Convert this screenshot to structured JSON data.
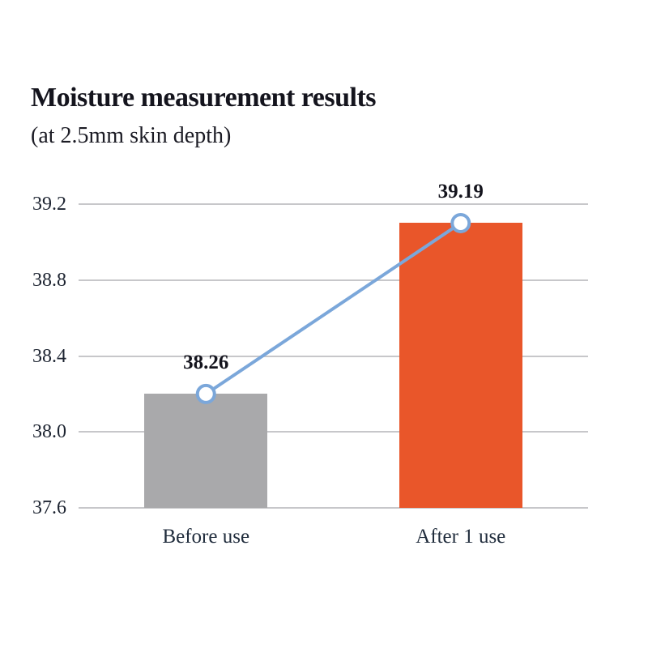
{
  "header": {
    "title": "Moisture measurement results",
    "subtitle": "(at 2.5mm skin depth)"
  },
  "chart_data": {
    "type": "bar",
    "title": "Moisture measurement results",
    "subtitle": "(at 2.5mm skin depth)",
    "categories": [
      "Before use",
      "After 1 use"
    ],
    "values": [
      38.26,
      39.19
    ],
    "data_labels": [
      "38.26",
      "39.19"
    ],
    "bar_colors": [
      "#a9a9ab",
      "#e9562a"
    ],
    "ylim": [
      37.6,
      39.2
    ],
    "yticks": [
      39.2,
      38.8,
      38.4,
      38.0,
      37.6
    ],
    "ytick_labels": [
      "39.2",
      "38.8",
      "38.4",
      "38.0",
      "37.6"
    ],
    "xlabel": "",
    "ylabel": "",
    "grid": "horizontal",
    "legend": "none",
    "connector": {
      "type": "line-with-open-circle-markers",
      "line_color": "#7ba7da",
      "marker_fill": "#ffffff",
      "marker_stroke": "#7ba7da"
    },
    "colors": {
      "grid": "#c7c7ca",
      "tick_text": "#1c2330",
      "label_text": "#14141d",
      "axis_category_text": "#202c3c"
    }
  }
}
